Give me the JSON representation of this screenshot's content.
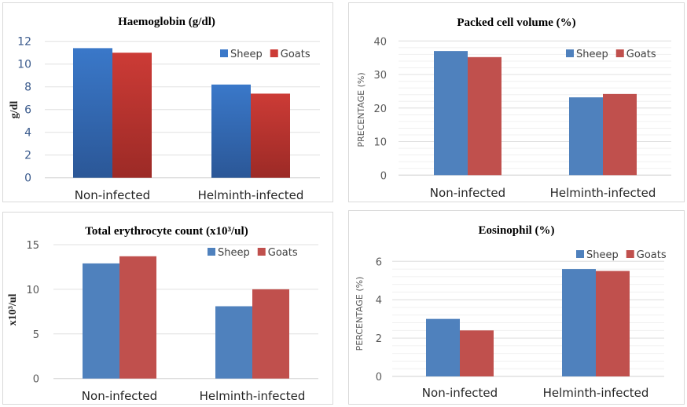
{
  "chart_data": [
    {
      "type": "bar",
      "title": "Haemoglobin (g/dl)",
      "ylabel": "g/dl",
      "xlabel": "",
      "categories": [
        "Non-infected",
        "Helminth-infected"
      ],
      "series": [
        {
          "name": "Sheep",
          "values": [
            11.4,
            8.2
          ],
          "color": "#3a78c9"
        },
        {
          "name": "Goats",
          "values": [
            11.0,
            7.4
          ],
          "color": "#cc3b36"
        }
      ],
      "ylim": [
        0,
        12
      ],
      "yticks": [
        0,
        2,
        4,
        6,
        8,
        10,
        12
      ],
      "grid": true,
      "legend": "top-right",
      "gradient": true
    },
    {
      "type": "bar",
      "title": "Packed cell volume (%)",
      "ylabel": "PRECENTAGE (%)",
      "xlabel": "",
      "categories": [
        "Non-infected",
        "Helminth-infected"
      ],
      "series": [
        {
          "name": "Sheep",
          "values": [
            37.0,
            23.2
          ],
          "color": "#4f81bd"
        },
        {
          "name": "Goats",
          "values": [
            35.2,
            24.2
          ],
          "color": "#c0504d"
        }
      ],
      "ylim": [
        0,
        40
      ],
      "yticks": [
        0,
        10,
        20,
        30,
        40
      ],
      "grid": true,
      "legend": "top-right"
    },
    {
      "type": "bar",
      "title": "Total erythrocyte count (x10³/ul)",
      "ylabel": "x10³/ul",
      "xlabel": "",
      "categories": [
        "Non-infected",
        "Helminth-infected"
      ],
      "series": [
        {
          "name": "Sheep",
          "values": [
            12.9,
            8.1
          ],
          "color": "#4f81bd"
        },
        {
          "name": "Goats",
          "values": [
            13.7,
            10.0
          ],
          "color": "#c0504d"
        }
      ],
      "ylim": [
        0,
        15
      ],
      "yticks": [
        0,
        5,
        10,
        15
      ],
      "grid": true,
      "legend": "top-right"
    },
    {
      "type": "bar",
      "title": "Eosinophil (%)",
      "ylabel": "PERCENTAGE (%)",
      "xlabel": "",
      "categories": [
        "Non-infected",
        "Helminth-infected"
      ],
      "series": [
        {
          "name": "Sheep",
          "values": [
            3.0,
            5.6
          ],
          "color": "#4f81bd"
        },
        {
          "name": "Goats",
          "values": [
            2.4,
            5.5
          ],
          "color": "#c0504d"
        }
      ],
      "ylim": [
        0,
        6
      ],
      "yticks": [
        0,
        2,
        4,
        6
      ],
      "grid": true,
      "legend": "top-right"
    }
  ]
}
